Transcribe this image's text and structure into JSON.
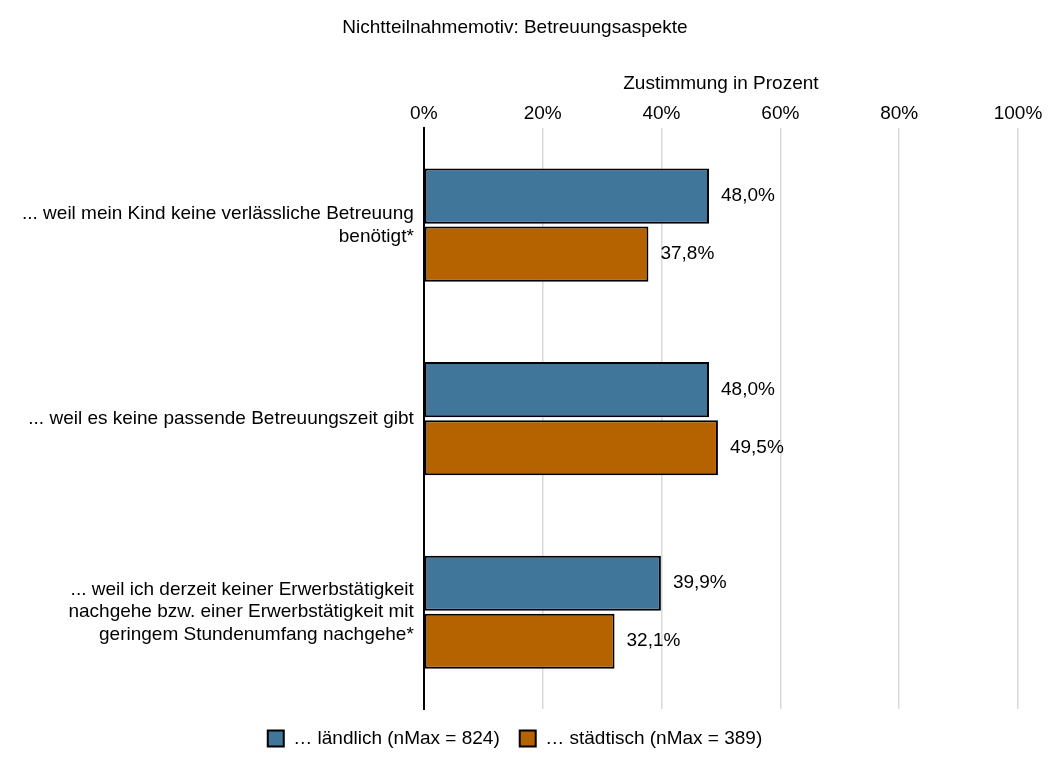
{
  "chart_data": {
    "type": "bar",
    "orientation": "horizontal",
    "title": "Nichtteilnahmemotiv: Betreuungsaspekte",
    "xlabel": "Zustimmung in Prozent",
    "categories": [
      "... weil mein Kind keine verlässliche Betreuung benötigt*",
      "... weil es keine passende Betreuungszeit gibt",
      "... weil ich derzeit keiner Erwerbstätigkeit nachgehe bzw. einer Erwerbstätigkeit mit geringem Stundenumfang nachgehe*"
    ],
    "series": [
      {
        "name": "… ländlich (nMax = 824)",
        "color": "#41769b",
        "values": [
          48.0,
          48.0,
          39.9
        ],
        "value_labels": [
          "48,0%",
          "48,0%",
          "39,9%"
        ]
      },
      {
        "name": "… städtisch (nMax = 389)",
        "color": "#b56200",
        "values": [
          37.8,
          49.5,
          32.1
        ],
        "value_labels": [
          "37,8%",
          "49,5%",
          "32,1%"
        ]
      }
    ],
    "xlim": [
      0,
      100
    ],
    "xticks": [
      {
        "value": 0,
        "label": "0%"
      },
      {
        "value": 20,
        "label": "20%"
      },
      {
        "value": 40,
        "label": "40%"
      },
      {
        "value": 60,
        "label": "60%"
      },
      {
        "value": 80,
        "label": "80%"
      },
      {
        "value": 100,
        "label": "100%"
      }
    ],
    "grid": "x",
    "legend": "bottom"
  }
}
